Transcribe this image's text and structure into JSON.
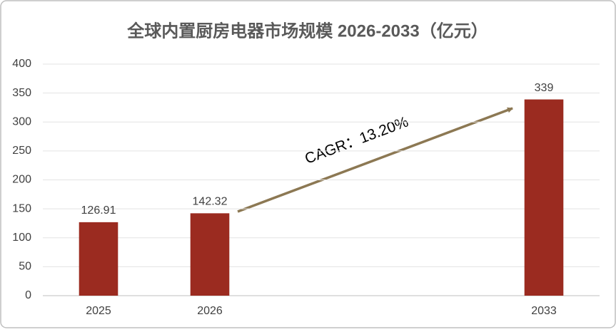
{
  "chart_data": {
    "type": "bar",
    "title": "全球内置厨房电器市场规模 2026-2033（亿元）",
    "categories": [
      "2025",
      "2026",
      null,
      null,
      "2033"
    ],
    "values": [
      126.91,
      142.32,
      null,
      null,
      339
    ],
    "color": "#9b2b20",
    "ylim": [
      0,
      400
    ],
    "yticks": [
      0,
      50,
      100,
      150,
      200,
      250,
      300,
      350,
      400
    ],
    "grid": true,
    "annotation": "CAGR：13.20%"
  }
}
